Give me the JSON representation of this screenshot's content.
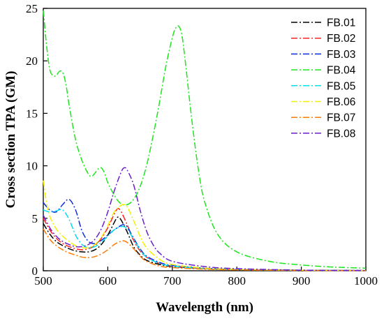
{
  "chart_data": {
    "type": "line",
    "title": "",
    "xlabel": "Wavelength (nm)",
    "ylabel": "Cross section TPA (GM)",
    "xlim": [
      500,
      1000
    ],
    "ylim": [
      0,
      25
    ],
    "xticks": [
      500,
      600,
      700,
      800,
      900,
      1000
    ],
    "yticks": [
      0,
      5,
      10,
      15,
      20,
      25
    ],
    "grid": false,
    "legend_position": "top-right",
    "line_style": "dash-dot",
    "series": [
      {
        "name": "FB.01",
        "color": "#000000",
        "x": [
          500,
          510,
          520,
          530,
          540,
          550,
          560,
          570,
          580,
          590,
          600,
          610,
          615,
          620,
          630,
          640,
          650,
          660,
          680,
          700,
          750,
          800,
          900,
          1000
        ],
        "y": [
          4.5,
          3.5,
          2.8,
          2.4,
          2.1,
          1.9,
          1.8,
          1.8,
          2.0,
          2.5,
          3.4,
          4.6,
          5.1,
          4.9,
          3.7,
          2.3,
          1.5,
          1.0,
          0.6,
          0.4,
          0.2,
          0.1,
          0.05,
          0.02
        ]
      },
      {
        "name": "FB.02",
        "color": "#ff2020",
        "x": [
          500,
          510,
          520,
          530,
          540,
          550,
          560,
          570,
          580,
          590,
          600,
          610,
          615,
          620,
          630,
          640,
          650,
          660,
          680,
          700,
          750,
          800,
          900,
          1000
        ],
        "y": [
          5.0,
          3.9,
          3.1,
          2.6,
          2.3,
          2.1,
          2.0,
          2.1,
          2.4,
          3.1,
          4.1,
          5.4,
          5.9,
          5.7,
          4.4,
          2.9,
          1.9,
          1.3,
          0.7,
          0.45,
          0.2,
          0.1,
          0.05,
          0.02
        ]
      },
      {
        "name": "FB.03",
        "color": "#0a2cdc",
        "x": [
          500,
          510,
          520,
          530,
          540,
          550,
          560,
          570,
          580,
          590,
          600,
          610,
          620,
          625,
          630,
          640,
          650,
          660,
          680,
          700,
          750,
          800,
          900,
          1000
        ],
        "y": [
          6.5,
          5.8,
          5.6,
          6.3,
          6.8,
          5.8,
          3.8,
          2.8,
          2.6,
          2.9,
          3.4,
          3.9,
          4.3,
          4.4,
          4.2,
          3.1,
          2.1,
          1.4,
          0.8,
          0.5,
          0.25,
          0.12,
          0.05,
          0.02
        ]
      },
      {
        "name": "FB.04",
        "color": "#1ee61e",
        "x": [
          500,
          505,
          510,
          515,
          520,
          525,
          530,
          535,
          540,
          550,
          560,
          570,
          575,
          580,
          585,
          590,
          595,
          600,
          610,
          620,
          630,
          640,
          650,
          660,
          670,
          680,
          690,
          700,
          705,
          710,
          715,
          720,
          730,
          740,
          750,
          770,
          800,
          850,
          900,
          950,
          1000
        ],
        "y": [
          24.8,
          21.5,
          19.2,
          18.6,
          18.6,
          19.0,
          18.9,
          17.8,
          15.8,
          12.5,
          10.5,
          9.2,
          9.0,
          9.3,
          9.7,
          9.8,
          9.3,
          8.4,
          7.2,
          6.4,
          6.3,
          6.8,
          8.0,
          10.0,
          12.8,
          16.0,
          19.5,
          22.2,
          23.1,
          23.3,
          22.4,
          20.0,
          14.5,
          9.8,
          6.6,
          3.5,
          1.8,
          0.9,
          0.55,
          0.35,
          0.25
        ]
      },
      {
        "name": "FB.05",
        "color": "#00e0f0",
        "x": [
          500,
          510,
          520,
          530,
          540,
          550,
          560,
          570,
          580,
          590,
          600,
          610,
          620,
          625,
          630,
          640,
          650,
          660,
          680,
          700,
          750,
          800,
          900,
          1000
        ],
        "y": [
          5.8,
          5.6,
          5.7,
          5.8,
          4.9,
          3.4,
          2.5,
          2.2,
          2.3,
          2.7,
          3.3,
          3.9,
          4.2,
          4.2,
          4.0,
          3.0,
          2.0,
          1.3,
          0.7,
          0.45,
          0.2,
          0.1,
          0.05,
          0.02
        ]
      },
      {
        "name": "FB.06",
        "color": "#f0f000",
        "x": [
          500,
          505,
          510,
          520,
          530,
          540,
          550,
          560,
          570,
          580,
          590,
          600,
          610,
          620,
          625,
          630,
          640,
          650,
          660,
          680,
          700,
          750,
          800,
          900,
          1000
        ],
        "y": [
          8.6,
          6.5,
          5.2,
          4.0,
          3.3,
          2.8,
          2.4,
          2.2,
          2.2,
          2.5,
          3.2,
          4.3,
          5.6,
          6.2,
          6.3,
          6.1,
          4.8,
          3.3,
          2.2,
          1.1,
          0.6,
          0.25,
          0.12,
          0.05,
          0.02
        ]
      },
      {
        "name": "FB.07",
        "color": "#ff7a00",
        "x": [
          500,
          510,
          520,
          530,
          540,
          550,
          560,
          570,
          580,
          590,
          600,
          610,
          620,
          625,
          630,
          640,
          650,
          660,
          680,
          700,
          750,
          800,
          900,
          1000
        ],
        "y": [
          4.0,
          3.0,
          2.4,
          2.0,
          1.7,
          1.5,
          1.3,
          1.25,
          1.35,
          1.6,
          2.0,
          2.5,
          2.8,
          2.85,
          2.7,
          2.1,
          1.4,
          0.9,
          0.45,
          0.3,
          0.15,
          0.08,
          0.03,
          0.01
        ]
      },
      {
        "name": "FB.08",
        "color": "#6a1fc8",
        "x": [
          500,
          510,
          520,
          530,
          540,
          550,
          560,
          570,
          580,
          590,
          600,
          610,
          620,
          625,
          630,
          640,
          650,
          660,
          670,
          680,
          700,
          750,
          800,
          900,
          1000
        ],
        "y": [
          5.3,
          4.1,
          3.3,
          2.8,
          2.5,
          2.3,
          2.3,
          2.5,
          3.0,
          4.0,
          5.6,
          7.6,
          9.3,
          9.8,
          9.6,
          8.2,
          5.8,
          3.8,
          2.5,
          1.7,
          0.9,
          0.4,
          0.2,
          0.06,
          0.02
        ]
      }
    ]
  }
}
